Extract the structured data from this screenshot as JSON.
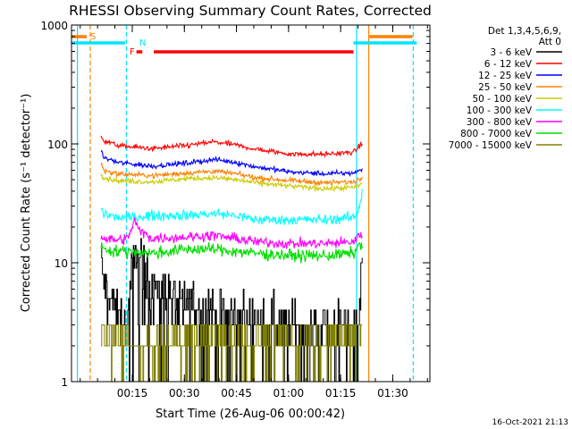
{
  "chart_data": {
    "type": "line",
    "title": "RHESSI Observing Summary Count Rates, Corrected",
    "xlabel": "Start Time (26-Aug-06 00:00:42)",
    "ylabel": "Corrected Count Rate (s⁻¹ detector⁻¹)",
    "x_unit": "minutes since 00:00:42",
    "xlim": [
      -3.2,
      100
    ],
    "ylim": [
      1,
      1000
    ],
    "yscale": "log",
    "x_ticks": [
      {
        "v": 14.3,
        "label": "00:15"
      },
      {
        "v": 29.3,
        "label": "00:30"
      },
      {
        "v": 44.3,
        "label": "00:45"
      },
      {
        "v": 59.3,
        "label": "01:00"
      },
      {
        "v": 74.3,
        "label": "01:15"
      },
      {
        "v": 89.3,
        "label": "01:30"
      }
    ],
    "y_ticks": [
      {
        "v": 1,
        "label": "1"
      },
      {
        "v": 10,
        "label": "10"
      },
      {
        "v": 100,
        "label": "100"
      },
      {
        "v": 1000,
        "label": "1000"
      }
    ],
    "legend_header": [
      "Det 1,3,4,5,6,9,",
      "Att 0"
    ],
    "legend_position": "right",
    "timestamp": "16-Oct-2021 21:13",
    "flags": [
      {
        "label": "S",
        "color": "#ff8000",
        "segments": [
          [
            -3.2,
            1.2
          ],
          [
            82.6,
            95.0
          ]
        ]
      },
      {
        "label": "N",
        "color": "#00e5ff",
        "segments": [
          [
            -3.2,
            12.2
          ],
          [
            78.0,
            96.2
          ]
        ]
      },
      {
        "label": "F",
        "color": "#ff0000",
        "segments": [
          [
            15.5,
            17.2
          ],
          [
            20.5,
            78.0
          ]
        ]
      }
    ],
    "vlines": [
      {
        "x": -1.5,
        "color": "#00e5ff",
        "style": "solid"
      },
      {
        "x": 2.2,
        "color": "#ff8000",
        "style": "dashed"
      },
      {
        "x": 12.6,
        "color": "#00e5ff",
        "style": "dashed"
      },
      {
        "x": 78.9,
        "color": "#00e5ff",
        "style": "solid"
      },
      {
        "x": 82.4,
        "color": "#ff8000",
        "style": "solid"
      },
      {
        "x": 95.2,
        "color": "#00e5ff",
        "style": "dashed"
      }
    ],
    "x_data_range": [
      5.3,
      80.5
    ],
    "series": [
      {
        "name": "3 - 6 keV",
        "color": "#000000",
        "x": [
          5.3,
          6,
          8,
          10,
          12,
          13,
          14,
          15,
          16,
          17,
          18,
          20,
          24,
          28,
          32,
          40,
          50,
          60,
          70,
          78,
          79.5,
          80.5
        ],
        "y": [
          10,
          7,
          5,
          3.5,
          3.2,
          4,
          8,
          12,
          13,
          11,
          8,
          7,
          6,
          5,
          4.5,
          3.8,
          3.2,
          3,
          3,
          3,
          3.5,
          10
        ],
        "noise": 0.14,
        "step": true,
        "floor": [
          0,
          1,
          3
        ]
      },
      {
        "name": "6 - 12 keV",
        "color": "#ff0000",
        "x": [
          5.3,
          6,
          10,
          20,
          30,
          38,
          44,
          50,
          60,
          70,
          78,
          80.5
        ],
        "y": [
          116,
          108,
          97,
          91,
          97,
          104,
          98,
          90,
          82,
          82,
          85,
          101
        ],
        "noise": 0.015
      },
      {
        "name": "12 - 25 keV",
        "color": "#0000ff",
        "x": [
          5.3,
          6,
          10,
          20,
          30,
          38,
          44,
          50,
          60,
          70,
          78,
          80.5
        ],
        "y": [
          88,
          77,
          70,
          65,
          69,
          74,
          70,
          64,
          58,
          56,
          57,
          61
        ],
        "noise": 0.015
      },
      {
        "name": "25 - 50 keV",
        "color": "#ff8000",
        "x": [
          5.3,
          6,
          10,
          20,
          30,
          38,
          44,
          50,
          60,
          70,
          78,
          80.5
        ],
        "y": [
          70,
          60,
          56,
          54,
          57,
          59,
          56,
          52,
          49,
          47,
          48,
          52
        ],
        "noise": 0.015
      },
      {
        "name": "50 - 100 keV",
        "color": "#cccc00",
        "x": [
          5.3,
          6,
          10,
          20,
          30,
          38,
          44,
          50,
          60,
          70,
          78,
          80.5
        ],
        "y": [
          58,
          52,
          49,
          48,
          51,
          52,
          50,
          47,
          44,
          42,
          43,
          46
        ],
        "noise": 0.015
      },
      {
        "name": "100 - 300 keV",
        "color": "#00ffff",
        "x": [
          5.3,
          6,
          10,
          14,
          20,
          30,
          38,
          44,
          50,
          60,
          70,
          78,
          79.5,
          80.5
        ],
        "y": [
          29,
          26,
          24,
          24,
          25,
          25,
          26,
          25,
          23,
          23,
          23,
          24,
          28,
          40
        ],
        "noise": 0.03
      },
      {
        "name": "300 - 800 keV",
        "color": "#ff00ff",
        "x": [
          5.3,
          6,
          10,
          13,
          14,
          15,
          16,
          20,
          30,
          38,
          44,
          50,
          60,
          70,
          78,
          80.5
        ],
        "y": [
          17,
          16,
          15.5,
          16,
          19,
          23,
          19,
          16,
          16.5,
          17,
          16,
          15,
          14.5,
          14.5,
          15,
          18
        ],
        "noise": 0.03
      },
      {
        "name": "800 - 7000 keV",
        "color": "#00dd00",
        "x": [
          5.3,
          6,
          10,
          15,
          20,
          30,
          38,
          44,
          50,
          60,
          70,
          78,
          80.5
        ],
        "y": [
          14,
          13,
          12.5,
          12.5,
          12,
          13,
          13,
          12.5,
          12,
          11.5,
          11.5,
          12,
          15
        ],
        "noise": 0.035
      },
      {
        "name": "7000 - 15000 keV",
        "color": "#808000",
        "x": [
          5.3,
          6,
          10,
          14,
          15,
          16,
          17,
          20,
          30,
          40,
          50,
          60,
          70,
          78,
          80.5
        ],
        "y": [
          3,
          2.5,
          2.4,
          2.3,
          1.8,
          1.5,
          1.6,
          2.2,
          2.5,
          2.5,
          2.4,
          2.4,
          2.5,
          2.5,
          3
        ],
        "noise": 0.09,
        "step": true,
        "floor": [
          0,
          1,
          2
        ]
      }
    ]
  }
}
